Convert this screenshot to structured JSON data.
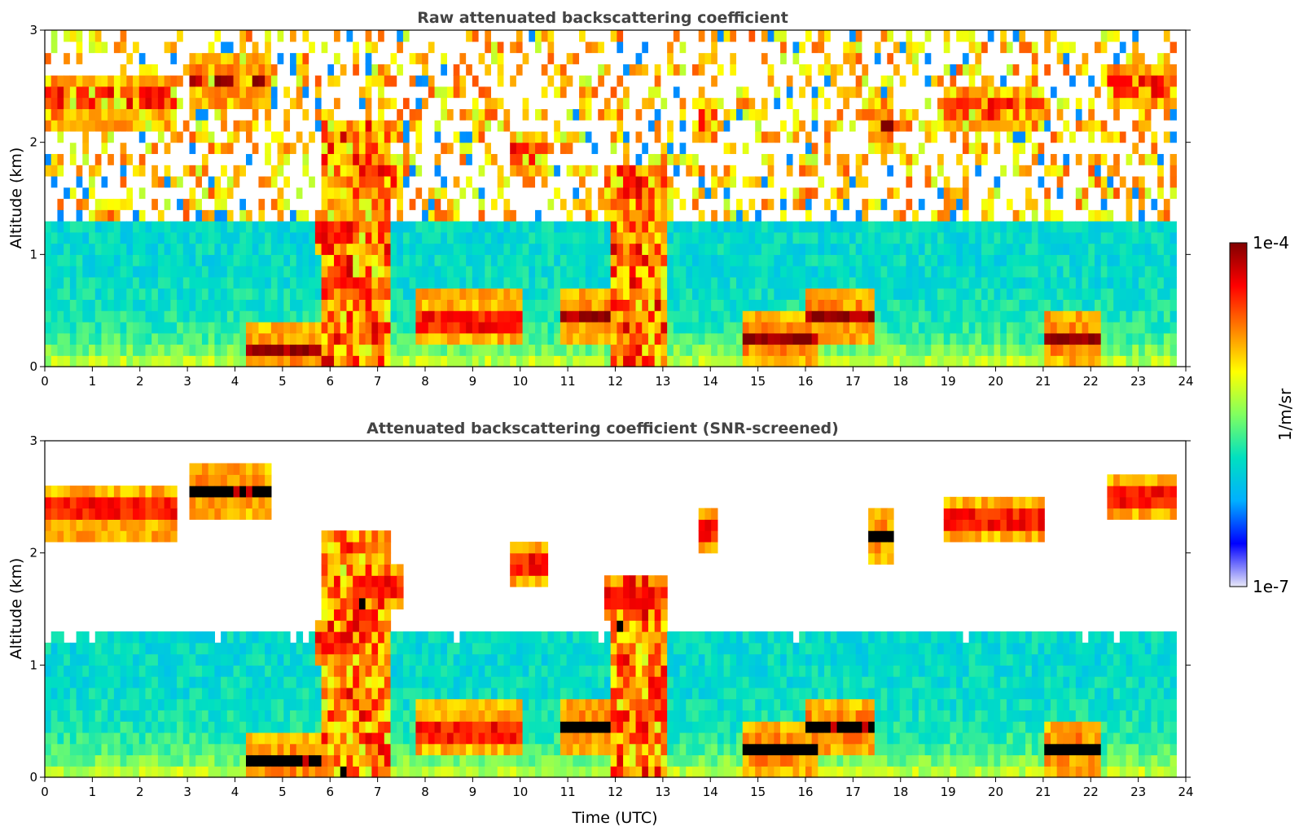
{
  "chart_data": [
    {
      "type": "heatmap",
      "title": "Raw attenuated backscattering coefficient",
      "xlabel": "",
      "ylabel": "Altitude (km)",
      "xlim": [
        0,
        24
      ],
      "ylim": [
        0,
        3
      ],
      "xticks": [
        "0",
        "1",
        "2",
        "3",
        "4",
        "5",
        "6",
        "7",
        "8",
        "9",
        "10",
        "11",
        "12",
        "13",
        "14",
        "15",
        "16",
        "17",
        "18",
        "19",
        "20",
        "21",
        "22",
        "23",
        "24"
      ],
      "yticks": [
        "0",
        "1",
        "2",
        "3"
      ],
      "screened": false,
      "data_end_hour": 23.8,
      "cloud_layers": [
        {
          "t_start": 0.0,
          "t_end": 2.8,
          "alt_km": 2.4,
          "level": "high"
        },
        {
          "t_start": 3.0,
          "t_end": 4.8,
          "alt_km": 2.55,
          "level": "high"
        },
        {
          "t_start": 4.2,
          "t_end": 5.8,
          "alt_km": 0.15,
          "level": "high"
        },
        {
          "t_start": 5.7,
          "t_end": 6.5,
          "alt_km": 1.2,
          "level": "high"
        },
        {
          "t_start": 6.6,
          "t_end": 7.6,
          "alt_km": 1.7,
          "level": "high"
        },
        {
          "t_start": 7.8,
          "t_end": 10.0,
          "alt_km": 0.4,
          "level": "high"
        },
        {
          "t_start": 9.8,
          "t_end": 10.6,
          "alt_km": 1.9,
          "level": "high"
        },
        {
          "t_start": 10.8,
          "t_end": 11.9,
          "alt_km": 0.45,
          "level": "high"
        },
        {
          "t_start": 11.8,
          "t_end": 13.0,
          "alt_km": 1.6,
          "level": "high"
        },
        {
          "t_start": 13.8,
          "t_end": 14.1,
          "alt_km": 2.2,
          "level": "high"
        },
        {
          "t_start": 14.7,
          "t_end": 16.2,
          "alt_km": 0.25,
          "level": "high"
        },
        {
          "t_start": 16.0,
          "t_end": 17.5,
          "alt_km": 0.45,
          "level": "high"
        },
        {
          "t_start": 17.3,
          "t_end": 17.8,
          "alt_km": 2.15,
          "level": "high"
        },
        {
          "t_start": 18.9,
          "t_end": 21.0,
          "alt_km": 2.3,
          "level": "high"
        },
        {
          "t_start": 21.0,
          "t_end": 22.2,
          "alt_km": 0.25,
          "level": "high"
        },
        {
          "t_start": 22.3,
          "t_end": 23.8,
          "alt_km": 2.5,
          "level": "high"
        }
      ]
    },
    {
      "type": "heatmap",
      "title": "Attenuated backscattering coefficient (SNR-screened)",
      "xlabel": "Time (UTC)",
      "ylabel": "Altitude (km)",
      "xlim": [
        0,
        24
      ],
      "ylim": [
        0,
        3
      ],
      "xticks": [
        "0",
        "1",
        "2",
        "3",
        "4",
        "5",
        "6",
        "7",
        "8",
        "9",
        "10",
        "11",
        "12",
        "13",
        "14",
        "15",
        "16",
        "17",
        "18",
        "19",
        "20",
        "21",
        "22",
        "23",
        "24"
      ],
      "yticks": [
        "0",
        "1",
        "2",
        "3"
      ],
      "screened": true,
      "data_end_hour": 23.8
    }
  ],
  "colorbar": {
    "label": "1/m/sr",
    "max_label": "1e-4",
    "min_label": "1e-7",
    "colormap": [
      "#e8e8f8",
      "#0000ff",
      "#00b0ff",
      "#00e0c0",
      "#80ff60",
      "#ffff00",
      "#ff8000",
      "#ff0000",
      "#800000"
    ]
  }
}
